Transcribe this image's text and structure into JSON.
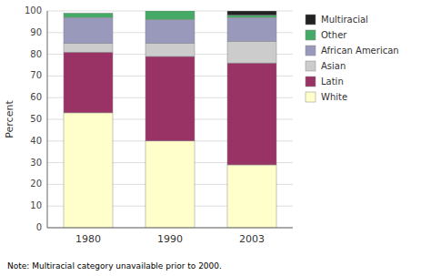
{
  "chart_data": {
    "type": "bar",
    "stacked": true,
    "ylabel": "Percent",
    "categories": [
      "1980",
      "1990",
      "2003"
    ],
    "series": [
      {
        "name": "White",
        "color": "#ffffcc",
        "values": [
          53,
          40,
          29
        ]
      },
      {
        "name": "Latin",
        "color": "#993366",
        "values": [
          28,
          39,
          47
        ]
      },
      {
        "name": "Asian",
        "color": "#cccccc",
        "values": [
          4,
          6,
          10
        ]
      },
      {
        "name": "African American",
        "color": "#9999bb",
        "values": [
          12,
          11,
          11
        ]
      },
      {
        "name": "Other",
        "color": "#44aa66",
        "values": [
          2,
          4,
          1
        ]
      },
      {
        "name": "Multiracial",
        "color": "#222222",
        "values": [
          0,
          0,
          2
        ]
      }
    ],
    "ylim": [
      0,
      100
    ],
    "yticks": [
      0,
      10,
      20,
      30,
      40,
      50,
      60,
      70,
      80,
      90,
      100
    ],
    "grid": true,
    "legend": "right",
    "annotations": [
      "Note: Multiracial category unavailable prior to 2000."
    ]
  }
}
